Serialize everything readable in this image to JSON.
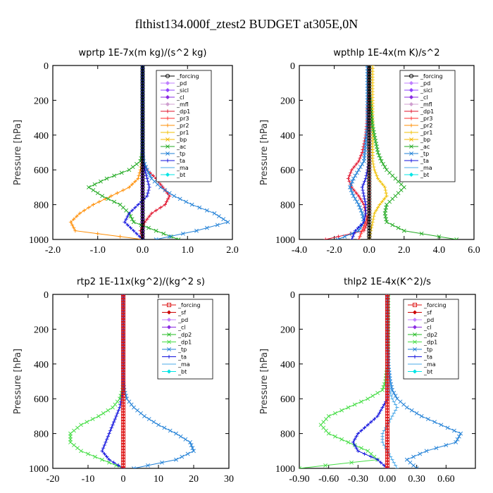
{
  "page": {
    "title": "flthist134.000f_ztest2  BUDGET at305E,0N"
  },
  "colors": {
    "_forcing": "#000000",
    "_pd": "#c080ff",
    "_sicl": "#9040ff",
    "_cl": "#8a2be2",
    "_mfl": "#d0a0d0",
    "_dp1": "#e0102a",
    "_dp1_b": "#44dd44",
    "_pr3": "#ff2a2a",
    "_pr2": "#ff8c00",
    "_pr1": "#f0c000",
    "_bp": "#f5b800",
    "_ac": "#22aa22",
    "_tp": "#1f7fd6",
    "_ta": "#1010dd",
    "_ma": "#4aa8e8",
    "_bt": "#00e5e5",
    "_sf": "#cc0000",
    "_dp2": "#22bb22",
    "red_forcing": "#dd1111"
  },
  "chart_data": [
    {
      "id": "wprtp",
      "type": "line",
      "title": "wprtp  1E-7x(m kg)/(s^2 kg)",
      "ylabel": "Pressure [hPa]",
      "xlim": [
        -2.0,
        2.0
      ],
      "ylim": [
        1000,
        0
      ],
      "xticks": [
        -2.0,
        -1.0,
        0.0,
        1.0,
        2.0
      ],
      "xtick_labels": [
        "-2.0",
        "-1.0",
        "0.0",
        "1.0",
        "2.0"
      ],
      "yticks": [
        0,
        200,
        400,
        600,
        800,
        1000
      ],
      "ytick_labels": [
        "0",
        "200",
        "400",
        "600",
        "800",
        "1000"
      ],
      "y": [
        0,
        50,
        100,
        150,
        200,
        250,
        300,
        350,
        400,
        450,
        500,
        550,
        600,
        650,
        700,
        750,
        800,
        850,
        900,
        950,
        1000
      ],
      "legend": [
        "_forcing",
        "_pd",
        "_sicl",
        "_cl",
        "_mfl",
        "_dp1",
        "_pr3",
        "_pr2",
        "_pr1",
        "_bp",
        "_ac",
        "_tp",
        "_ta",
        "_ma",
        "_bt"
      ],
      "series": [
        {
          "name": "_forcing",
          "color_key": "_forcing",
          "marker": "circle",
          "values": [
            0,
            0,
            0,
            0,
            0,
            0,
            0,
            0,
            0,
            0,
            0,
            0,
            0,
            0,
            0,
            0,
            0,
            0,
            0,
            0,
            0
          ]
        },
        {
          "name": "_pd",
          "color_key": "_pd",
          "marker": "diamond",
          "values": [
            0,
            0,
            0,
            0,
            0,
            0,
            0,
            0,
            0,
            0,
            0,
            0,
            0,
            0,
            0,
            0,
            0,
            0,
            0,
            0,
            0
          ]
        },
        {
          "name": "_sicl",
          "color_key": "_sicl",
          "marker": "diamond",
          "values": [
            0,
            0,
            0,
            0,
            0,
            0,
            0,
            0,
            0,
            0,
            0,
            0,
            0,
            0,
            0,
            0,
            0,
            0,
            0,
            0,
            0
          ]
        },
        {
          "name": "_dp1",
          "color_key": "_dp1",
          "marker": "plus",
          "values": [
            0,
            0,
            0,
            0,
            0,
            0,
            0,
            0,
            0,
            0,
            0,
            -0.02,
            0.1,
            0.3,
            0.45,
            0.6,
            0.5,
            0.2,
            0.05,
            -0.05,
            0
          ]
        },
        {
          "name": "_pr2",
          "color_key": "_pr2",
          "marker": "plus",
          "values": [
            0,
            0,
            0,
            0,
            0,
            0,
            0,
            0,
            0,
            0,
            0,
            -0.02,
            -0.05,
            -0.1,
            -0.3,
            -0.7,
            -1.1,
            -1.4,
            -1.6,
            -1.5,
            0
          ]
        },
        {
          "name": "_ac",
          "color_key": "_ac",
          "marker": "x",
          "values": [
            0,
            0,
            0,
            0,
            0,
            0,
            0,
            0,
            0,
            0,
            0,
            -0.05,
            -0.3,
            -0.8,
            -1.2,
            -0.9,
            -0.5,
            -0.3,
            -0.2,
            0.3,
            0.8
          ]
        },
        {
          "name": "_tp",
          "color_key": "_tp",
          "marker": "x",
          "values": [
            0,
            0,
            0,
            0,
            0,
            0,
            0,
            0,
            0,
            0,
            0,
            0.02,
            0.1,
            0.2,
            0.4,
            0.7,
            1.1,
            1.6,
            1.9,
            1.2,
            0.3
          ]
        },
        {
          "name": "_ta",
          "color_key": "_ta",
          "marker": "plus",
          "values": [
            0,
            0,
            0,
            0,
            0,
            0,
            0,
            0,
            0,
            0,
            0,
            0,
            0.05,
            0.1,
            0.15,
            0.1,
            -0.1,
            -0.3,
            -0.4,
            -0.2,
            0
          ]
        }
      ]
    },
    {
      "id": "wpthlp",
      "type": "line",
      "title": "wpthlp  1E-4x(m K)/s^2",
      "ylabel": "Pressure [hPa]",
      "xlim": [
        -4.0,
        6.0
      ],
      "ylim": [
        1000,
        0
      ],
      "xticks": [
        -4.0,
        -2.0,
        0.0,
        2.0,
        4.0,
        6.0
      ],
      "xtick_labels": [
        "-4.0",
        "-2.0",
        "0.0",
        "2.0",
        "4.0",
        "6.0"
      ],
      "yticks": [
        0,
        200,
        400,
        600,
        800,
        1000
      ],
      "ytick_labels": [
        "0",
        "200",
        "400",
        "600",
        "800",
        "1000"
      ],
      "y": [
        0,
        50,
        100,
        150,
        200,
        250,
        300,
        350,
        400,
        450,
        500,
        550,
        600,
        650,
        700,
        750,
        800,
        850,
        900,
        950,
        1000
      ],
      "legend": [
        "_forcing",
        "_pd",
        "_sicl",
        "_cl",
        "_mfl",
        "_dp1",
        "_pr3",
        "_pr2",
        "_pr1",
        "_bp",
        "_ac",
        "_tp",
        "_ta",
        "_ma",
        "_bt"
      ],
      "series": [
        {
          "name": "_forcing",
          "color_key": "_forcing",
          "marker": "circle",
          "values": [
            0,
            0,
            0,
            0,
            0,
            0,
            0,
            0,
            0,
            0,
            0,
            0,
            0,
            0,
            0,
            0,
            0,
            0,
            0,
            0,
            0
          ]
        },
        {
          "name": "_pr1",
          "color_key": "_pr1",
          "marker": "plus",
          "values": [
            0.2,
            0.2,
            0.2,
            0.2,
            0.2,
            0.2,
            0.2,
            0.2,
            0.2,
            0.2,
            0.2,
            0.2,
            0.3,
            0.5,
            0.9,
            1.0,
            0.6,
            0.3,
            0.2,
            0.1,
            0
          ]
        },
        {
          "name": "_ac",
          "color_key": "_ac",
          "marker": "x",
          "values": [
            0,
            0,
            0,
            0,
            0.05,
            0.1,
            0.15,
            0.2,
            0.3,
            0.4,
            0.5,
            0.7,
            1.0,
            1.5,
            2.0,
            1.5,
            1.0,
            0.9,
            1.0,
            2.0,
            5.0
          ]
        },
        {
          "name": "_dp1",
          "color_key": "_dp1",
          "marker": "plus",
          "values": [
            0,
            0,
            0,
            0,
            -0.05,
            -0.1,
            -0.1,
            -0.15,
            -0.2,
            -0.3,
            -0.4,
            -0.6,
            -1.0,
            -1.2,
            -1.0,
            -0.6,
            -0.3,
            -0.2,
            -0.1,
            -0.3,
            -2.5
          ]
        },
        {
          "name": "_tp",
          "color_key": "_tp",
          "marker": "x",
          "values": [
            -0.1,
            -0.1,
            -0.1,
            -0.1,
            -0.1,
            -0.1,
            -0.1,
            -0.1,
            -0.15,
            -0.2,
            -0.25,
            -0.3,
            -0.6,
            -0.9,
            -1.1,
            -0.9,
            -0.6,
            -0.4,
            -0.3,
            -0.6,
            -1.8
          ]
        },
        {
          "name": "_ta",
          "color_key": "_ta",
          "marker": "plus",
          "values": [
            0,
            0,
            0,
            0,
            0,
            0,
            0,
            0,
            0,
            0,
            0,
            0,
            -0.1,
            -0.2,
            -0.4,
            -0.3,
            -0.2,
            -0.2,
            -0.3,
            -0.8,
            -1.0
          ]
        },
        {
          "name": "_pr3",
          "color_key": "_pr3",
          "marker": "plus",
          "values": [
            0,
            0,
            0,
            0,
            0,
            0,
            0,
            0,
            0,
            0,
            0,
            0,
            0,
            0,
            0,
            0,
            0,
            0,
            -0.2,
            -0.4,
            -0.6
          ]
        }
      ]
    },
    {
      "id": "rtp2",
      "type": "line",
      "title": "rtp2  1E-11x(kg^2)/(kg^2 s)",
      "ylabel": "Pressure [hPa]",
      "xlim": [
        -20,
        30
      ],
      "ylim": [
        1000,
        0
      ],
      "xticks": [
        -20,
        -10,
        0,
        10,
        20,
        30
      ],
      "xtick_labels": [
        "-20",
        "-10",
        "0",
        "10",
        "20",
        "30"
      ],
      "yticks": [
        0,
        200,
        400,
        600,
        800,
        1000
      ],
      "ytick_labels": [
        "0",
        "200",
        "400",
        "600",
        "800",
        "1000"
      ],
      "y": [
        0,
        50,
        100,
        150,
        200,
        250,
        300,
        350,
        400,
        450,
        500,
        550,
        600,
        650,
        700,
        750,
        800,
        850,
        900,
        950,
        1000
      ],
      "legend": [
        "_forcing",
        "_sf",
        "_pd",
        "_cl",
        "_dp2",
        "_dp1",
        "_tp",
        "_ta",
        "_ma",
        "_bt"
      ],
      "series": [
        {
          "name": "_forcing",
          "color_key": "red_forcing",
          "marker": "square",
          "values": [
            0,
            0,
            0,
            0,
            0,
            0,
            0,
            0,
            0,
            0,
            0,
            0,
            0,
            0,
            0,
            0,
            0,
            0,
            0,
            0,
            0
          ]
        },
        {
          "name": "_dp1",
          "color_key": "_dp1_b",
          "marker": "x",
          "values": [
            0,
            0,
            0,
            0,
            0,
            0,
            0,
            0,
            0,
            0,
            0,
            -0.2,
            -1,
            -3,
            -7,
            -12,
            -15,
            -15,
            -12,
            -6,
            0
          ]
        },
        {
          "name": "_tp",
          "color_key": "_tp",
          "marker": "x",
          "values": [
            0,
            0,
            0,
            0,
            0,
            0,
            0,
            0,
            0,
            0,
            0,
            0.3,
            1,
            3,
            6,
            10,
            15,
            19,
            20,
            15,
            3
          ]
        },
        {
          "name": "_ta",
          "color_key": "_ta",
          "marker": "plus",
          "values": [
            0,
            0,
            0,
            0,
            0,
            0,
            0,
            0,
            0,
            0,
            0,
            0,
            -0.5,
            -1,
            -2,
            -3,
            -4,
            -5,
            -6,
            -4,
            0
          ]
        }
      ]
    },
    {
      "id": "thlp2",
      "type": "line",
      "title": "thlp2  1E-4x(K^2)/s",
      "ylabel": "Pressure [hPa]",
      "xlim": [
        -0.9,
        0.9
      ],
      "ylim": [
        1000,
        0
      ],
      "xticks": [
        -0.9,
        -0.6,
        -0.3,
        0.0,
        0.3,
        0.6
      ],
      "xtick_labels": [
        "-0.90",
        "-0.60",
        "-0.30",
        "0.00",
        "0.30",
        "0.60"
      ],
      "yticks": [
        0,
        200,
        400,
        600,
        800,
        1000
      ],
      "ytick_labels": [
        "0",
        "200",
        "400",
        "600",
        "800",
        "1000"
      ],
      "y": [
        0,
        50,
        100,
        150,
        200,
        250,
        300,
        350,
        400,
        450,
        500,
        550,
        600,
        650,
        700,
        750,
        800,
        850,
        900,
        950,
        1000
      ],
      "legend": [
        "_forcing",
        "_sf",
        "_pd",
        "_cl",
        "_dp2",
        "_dp1",
        "_tp",
        "_ta",
        "_ma",
        "_bt"
      ],
      "series": [
        {
          "name": "_forcing",
          "color_key": "red_forcing",
          "marker": "square",
          "values": [
            0,
            0,
            0,
            0,
            0,
            0,
            0,
            0,
            0,
            0,
            0,
            0,
            0,
            0,
            0,
            0,
            0,
            0,
            0,
            0,
            0
          ]
        },
        {
          "name": "_dp1",
          "color_key": "_dp1_b",
          "marker": "x",
          "values": [
            0.01,
            0.01,
            0.01,
            0.01,
            0.01,
            0.01,
            0.01,
            0.01,
            0.01,
            -0.01,
            -0.02,
            -0.05,
            -0.2,
            -0.4,
            -0.6,
            -0.68,
            -0.6,
            -0.4,
            -0.2,
            -0.1,
            -0.9
          ]
        },
        {
          "name": "_tp",
          "color_key": "_tp",
          "marker": "x",
          "values": [
            0,
            0,
            0,
            0,
            0,
            0,
            0,
            0.01,
            0.01,
            0.02,
            0.03,
            0.05,
            0.1,
            0.2,
            0.35,
            0.55,
            0.75,
            0.7,
            0.4,
            0.2,
            0.3
          ]
        },
        {
          "name": "_ta",
          "color_key": "_ta",
          "marker": "plus",
          "values": [
            0,
            0,
            0,
            0,
            0,
            0,
            0,
            0,
            0,
            0,
            0,
            0,
            0,
            -0.05,
            -0.1,
            -0.2,
            -0.3,
            -0.35,
            -0.3,
            -0.1,
            0
          ]
        },
        {
          "name": "_ma",
          "color_key": "_ma",
          "marker": "dash",
          "values": [
            0,
            0,
            0,
            0,
            0,
            0,
            0,
            0,
            0,
            0,
            0,
            0.02,
            0.05,
            0.1,
            0.05,
            0,
            -0.05,
            -0.05,
            0,
            0.05,
            0.1
          ]
        }
      ]
    }
  ]
}
